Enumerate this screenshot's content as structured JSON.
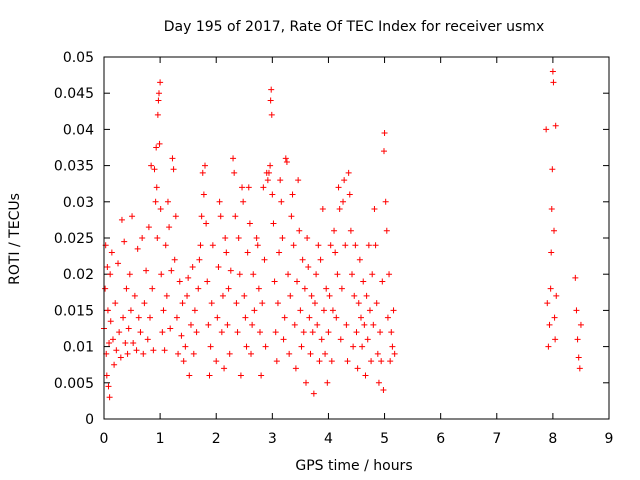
{
  "chart_data": {
    "type": "scatter",
    "title": "Day 195 of 2017, Rate Of TEC Index for receiver usmx",
    "xlabel": "GPS time / hours",
    "ylabel": "ROTI / TECUs",
    "xlim": [
      0,
      9
    ],
    "ylim": [
      0,
      0.05
    ],
    "x_ticks": [
      "0",
      "1",
      "2",
      "3",
      "4",
      "5",
      "6",
      "7",
      "8",
      "9"
    ],
    "y_ticks": [
      "0",
      "0.005",
      "0.01",
      "0.015",
      "0.02",
      "0.025",
      "0.03",
      "0.035",
      "0.04",
      "0.045",
      "0.05"
    ],
    "grid": false,
    "marker": "+",
    "color": "#ff0000",
    "series": [
      {
        "name": "ROTI",
        "points": [
          [
            0.0,
            0.0125
          ],
          [
            0.02,
            0.018
          ],
          [
            0.03,
            0.024
          ],
          [
            0.04,
            0.009
          ],
          [
            0.05,
            0.006
          ],
          [
            0.06,
            0.021
          ],
          [
            0.07,
            0.015
          ],
          [
            0.08,
            0.0045
          ],
          [
            0.09,
            0.0105
          ],
          [
            0.1,
            0.003
          ],
          [
            0.11,
            0.02
          ],
          [
            0.12,
            0.0135
          ],
          [
            0.14,
            0.023
          ],
          [
            0.16,
            0.011
          ],
          [
            0.18,
            0.0075
          ],
          [
            0.2,
            0.016
          ],
          [
            0.22,
            0.0095
          ],
          [
            0.25,
            0.0215
          ],
          [
            0.27,
            0.012
          ],
          [
            0.3,
            0.0085
          ],
          [
            0.32,
            0.0275
          ],
          [
            0.34,
            0.014
          ],
          [
            0.36,
            0.0245
          ],
          [
            0.38,
            0.0105
          ],
          [
            0.4,
            0.018
          ],
          [
            0.42,
            0.009
          ],
          [
            0.44,
            0.0125
          ],
          [
            0.46,
            0.02
          ],
          [
            0.48,
            0.015
          ],
          [
            0.5,
            0.028
          ],
          [
            0.52,
            0.0105
          ],
          [
            0.55,
            0.017
          ],
          [
            0.58,
            0.0095
          ],
          [
            0.6,
            0.0235
          ],
          [
            0.62,
            0.014
          ],
          [
            0.65,
            0.012
          ],
          [
            0.68,
            0.025
          ],
          [
            0.7,
            0.009
          ],
          [
            0.72,
            0.016
          ],
          [
            0.75,
            0.0205
          ],
          [
            0.78,
            0.011
          ],
          [
            0.8,
            0.0265
          ],
          [
            0.82,
            0.014
          ],
          [
            0.84,
            0.035
          ],
          [
            0.86,
            0.018
          ],
          [
            0.88,
            0.0095
          ],
          [
            0.9,
            0.0345
          ],
          [
            0.92,
            0.03
          ],
          [
            0.93,
            0.0375
          ],
          [
            0.94,
            0.032
          ],
          [
            0.95,
            0.025
          ],
          [
            0.96,
            0.042
          ],
          [
            0.97,
            0.044
          ],
          [
            0.98,
            0.045
          ],
          [
            0.99,
            0.038
          ],
          [
            1.0,
            0.0465
          ],
          [
            1.01,
            0.029
          ],
          [
            1.02,
            0.02
          ],
          [
            1.04,
            0.012
          ],
          [
            1.06,
            0.015
          ],
          [
            1.08,
            0.0095
          ],
          [
            1.1,
            0.024
          ],
          [
            1.12,
            0.017
          ],
          [
            1.14,
            0.03
          ],
          [
            1.16,
            0.0265
          ],
          [
            1.18,
            0.0125
          ],
          [
            1.2,
            0.0205
          ],
          [
            1.22,
            0.036
          ],
          [
            1.24,
            0.0345
          ],
          [
            1.26,
            0.022
          ],
          [
            1.28,
            0.028
          ],
          [
            1.3,
            0.014
          ],
          [
            1.32,
            0.009
          ],
          [
            1.35,
            0.019
          ],
          [
            1.38,
            0.0115
          ],
          [
            1.4,
            0.016
          ],
          [
            1.42,
            0.008
          ],
          [
            1.45,
            0.01
          ],
          [
            1.48,
            0.017
          ],
          [
            1.5,
            0.0195
          ],
          [
            1.52,
            0.006
          ],
          [
            1.55,
            0.013
          ],
          [
            1.58,
            0.021
          ],
          [
            1.6,
            0.009
          ],
          [
            1.62,
            0.015
          ],
          [
            1.65,
            0.012
          ],
          [
            1.68,
            0.018
          ],
          [
            1.7,
            0.022
          ],
          [
            1.72,
            0.024
          ],
          [
            1.74,
            0.028
          ],
          [
            1.76,
            0.034
          ],
          [
            1.78,
            0.031
          ],
          [
            1.8,
            0.035
          ],
          [
            1.82,
            0.027
          ],
          [
            1.84,
            0.019
          ],
          [
            1.86,
            0.013
          ],
          [
            1.88,
            0.006
          ],
          [
            1.9,
            0.01
          ],
          [
            1.92,
            0.016
          ],
          [
            1.94,
            0.024
          ],
          [
            2.0,
            0.008
          ],
          [
            2.02,
            0.014
          ],
          [
            2.04,
            0.021
          ],
          [
            2.06,
            0.03
          ],
          [
            2.08,
            0.028
          ],
          [
            2.1,
            0.012
          ],
          [
            2.12,
            0.017
          ],
          [
            2.14,
            0.007
          ],
          [
            2.16,
            0.025
          ],
          [
            2.18,
            0.023
          ],
          [
            2.2,
            0.013
          ],
          [
            2.22,
            0.018
          ],
          [
            2.24,
            0.009
          ],
          [
            2.26,
            0.0205
          ],
          [
            2.3,
            0.036
          ],
          [
            2.32,
            0.034
          ],
          [
            2.34,
            0.028
          ],
          [
            2.36,
            0.016
          ],
          [
            2.38,
            0.012
          ],
          [
            2.4,
            0.025
          ],
          [
            2.42,
            0.02
          ],
          [
            2.44,
            0.006
          ],
          [
            2.46,
            0.032
          ],
          [
            2.48,
            0.03
          ],
          [
            2.5,
            0.017
          ],
          [
            2.52,
            0.014
          ],
          [
            2.54,
            0.01
          ],
          [
            2.56,
            0.023
          ],
          [
            2.58,
            0.032
          ],
          [
            2.6,
            0.027
          ],
          [
            2.62,
            0.009
          ],
          [
            2.64,
            0.013
          ],
          [
            2.66,
            0.02
          ],
          [
            2.68,
            0.015
          ],
          [
            2.72,
            0.025
          ],
          [
            2.74,
            0.024
          ],
          [
            2.76,
            0.018
          ],
          [
            2.78,
            0.012
          ],
          [
            2.8,
            0.006
          ],
          [
            2.82,
            0.016
          ],
          [
            2.84,
            0.032
          ],
          [
            2.86,
            0.022
          ],
          [
            2.88,
            0.01
          ],
          [
            2.9,
            0.034
          ],
          [
            2.92,
            0.033
          ],
          [
            2.94,
            0.034
          ],
          [
            2.96,
            0.035
          ],
          [
            2.97,
            0.044
          ],
          [
            2.98,
            0.0455
          ],
          [
            2.99,
            0.042
          ],
          [
            3.0,
            0.031
          ],
          [
            3.02,
            0.027
          ],
          [
            3.04,
            0.019
          ],
          [
            3.06,
            0.012
          ],
          [
            3.08,
            0.008
          ],
          [
            3.1,
            0.016
          ],
          [
            3.12,
            0.023
          ],
          [
            3.14,
            0.033
          ],
          [
            3.16,
            0.03
          ],
          [
            3.18,
            0.025
          ],
          [
            3.2,
            0.011
          ],
          [
            3.22,
            0.014
          ],
          [
            3.24,
            0.036
          ],
          [
            3.26,
            0.0355
          ],
          [
            3.28,
            0.02
          ],
          [
            3.3,
            0.009
          ],
          [
            3.32,
            0.017
          ],
          [
            3.34,
            0.028
          ],
          [
            3.36,
            0.031
          ],
          [
            3.38,
            0.024
          ],
          [
            3.4,
            0.013
          ],
          [
            3.42,
            0.007
          ],
          [
            3.44,
            0.019
          ],
          [
            3.46,
            0.033
          ],
          [
            3.48,
            0.026
          ],
          [
            3.5,
            0.015
          ],
          [
            3.52,
            0.01
          ],
          [
            3.54,
            0.022
          ],
          [
            3.56,
            0.012
          ],
          [
            3.58,
            0.018
          ],
          [
            3.6,
            0.005
          ],
          [
            3.62,
            0.025
          ],
          [
            3.64,
            0.021
          ],
          [
            3.66,
            0.014
          ],
          [
            3.68,
            0.009
          ],
          [
            3.7,
            0.017
          ],
          [
            3.72,
            0.012
          ],
          [
            3.74,
            0.0035
          ],
          [
            3.76,
            0.016
          ],
          [
            3.78,
            0.02
          ],
          [
            3.8,
            0.013
          ],
          [
            3.82,
            0.024
          ],
          [
            3.84,
            0.008
          ],
          [
            3.86,
            0.022
          ],
          [
            3.88,
            0.011
          ],
          [
            3.9,
            0.029
          ],
          [
            3.92,
            0.015
          ],
          [
            3.94,
            0.009
          ],
          [
            3.96,
            0.018
          ],
          [
            3.98,
            0.005
          ],
          [
            4.0,
            0.012
          ],
          [
            4.02,
            0.017
          ],
          [
            4.04,
            0.024
          ],
          [
            4.06,
            0.008
          ],
          [
            4.08,
            0.015
          ],
          [
            4.1,
            0.026
          ],
          [
            4.12,
            0.023
          ],
          [
            4.14,
            0.014
          ],
          [
            4.16,
            0.02
          ],
          [
            4.18,
            0.032
          ],
          [
            4.2,
            0.029
          ],
          [
            4.22,
            0.011
          ],
          [
            4.24,
            0.018
          ],
          [
            4.26,
            0.03
          ],
          [
            4.28,
            0.033
          ],
          [
            4.3,
            0.024
          ],
          [
            4.32,
            0.013
          ],
          [
            4.34,
            0.008
          ],
          [
            4.36,
            0.034
          ],
          [
            4.38,
            0.031
          ],
          [
            4.4,
            0.026
          ],
          [
            4.42,
            0.02
          ],
          [
            4.44,
            0.01
          ],
          [
            4.46,
            0.017
          ],
          [
            4.48,
            0.024
          ],
          [
            4.5,
            0.012
          ],
          [
            4.52,
            0.007
          ],
          [
            4.54,
            0.016
          ],
          [
            4.56,
            0.022
          ],
          [
            4.58,
            0.014
          ],
          [
            4.6,
            0.01
          ],
          [
            4.62,
            0.019
          ],
          [
            4.64,
            0.013
          ],
          [
            4.66,
            0.006
          ],
          [
            4.68,
            0.017
          ],
          [
            4.7,
            0.011
          ],
          [
            4.72,
            0.024
          ],
          [
            4.74,
            0.015
          ],
          [
            4.76,
            0.008
          ],
          [
            4.78,
            0.02
          ],
          [
            4.8,
            0.013
          ],
          [
            4.82,
            0.029
          ],
          [
            4.84,
            0.024
          ],
          [
            4.86,
            0.016
          ],
          [
            4.88,
            0.009
          ],
          [
            4.9,
            0.005
          ],
          [
            4.92,
            0.012
          ],
          [
            4.94,
            0.008
          ],
          [
            4.96,
            0.019
          ],
          [
            4.98,
            0.004
          ],
          [
            4.99,
            0.037
          ],
          [
            5.0,
            0.0395
          ],
          [
            5.02,
            0.03
          ],
          [
            5.04,
            0.026
          ],
          [
            5.06,
            0.014
          ],
          [
            5.08,
            0.02
          ],
          [
            5.1,
            0.008
          ],
          [
            5.12,
            0.012
          ],
          [
            5.14,
            0.01
          ],
          [
            5.16,
            0.015
          ],
          [
            5.18,
            0.009
          ],
          [
            7.88,
            0.04
          ],
          [
            7.9,
            0.016
          ],
          [
            7.92,
            0.01
          ],
          [
            7.94,
            0.013
          ],
          [
            7.96,
            0.018
          ],
          [
            7.97,
            0.023
          ],
          [
            7.98,
            0.029
          ],
          [
            7.99,
            0.0345
          ],
          [
            8.0,
            0.048
          ],
          [
            8.01,
            0.0465
          ],
          [
            8.02,
            0.026
          ],
          [
            8.03,
            0.014
          ],
          [
            8.04,
            0.011
          ],
          [
            8.05,
            0.0405
          ],
          [
            8.06,
            0.017
          ],
          [
            8.4,
            0.0195
          ],
          [
            8.42,
            0.015
          ],
          [
            8.44,
            0.011
          ],
          [
            8.46,
            0.0085
          ],
          [
            8.48,
            0.007
          ],
          [
            8.5,
            0.013
          ]
        ]
      }
    ]
  }
}
